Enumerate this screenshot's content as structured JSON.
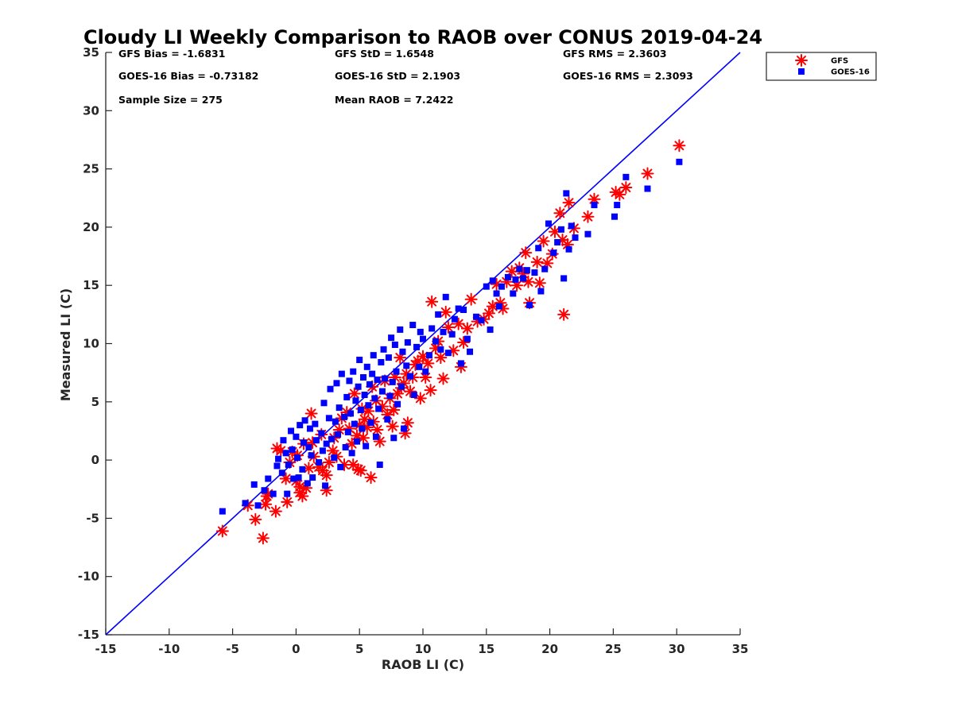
{
  "chart_data": {
    "type": "scatter",
    "title": "Cloudy LI Weekly Comparison to RAOB over CONUS 2019-04-24",
    "xlabel": "RAOB LI (C)",
    "ylabel": "Measured LI (C)",
    "xlim": [
      -15,
      35
    ],
    "ylim": [
      -15,
      35
    ],
    "xticks": [
      "-15",
      "-10",
      "-5",
      "0",
      "5",
      "10",
      "15",
      "20",
      "25",
      "30",
      "35"
    ],
    "yticks": [
      "-15",
      "-10",
      "-5",
      "0",
      "5",
      "10",
      "15",
      "20",
      "25",
      "30",
      "35"
    ],
    "grid": false,
    "legend_position": "top-right (outside)",
    "one_to_one_line": {
      "from": [
        -15,
        -15
      ],
      "to": [
        35,
        35
      ],
      "color": "#0000ff"
    },
    "stats": [
      {
        "text": "GFS Bias = -1.6831"
      },
      {
        "text": "GFS StD = 1.6548"
      },
      {
        "text": "GFS RMS = 2.3603"
      },
      {
        "text": "GOES-16 Bias = -0.73182"
      },
      {
        "text": "GOES-16 StD = 2.1903"
      },
      {
        "text": "GOES-16 RMS = 2.3093"
      },
      {
        "text": "Sample Size = 275"
      },
      {
        "text": "Mean RAOB = 7.2422"
      }
    ],
    "series": [
      {
        "name": "GFS",
        "marker": "asterisk",
        "color": "#ff0000",
        "points": [
          [
            -5.8,
            -6.1
          ],
          [
            -3.8,
            -3.9
          ],
          [
            -3.2,
            -5.1
          ],
          [
            -2.6,
            -6.7
          ],
          [
            -2.3,
            -3.1
          ],
          [
            -2.2,
            -2.9
          ],
          [
            -2.4,
            -3.8
          ],
          [
            -1.6,
            -4.4
          ],
          [
            -1.5,
            1.0
          ],
          [
            -1.2,
            0.8
          ],
          [
            -0.8,
            -1.6
          ],
          [
            -0.7,
            -3.6
          ],
          [
            -0.5,
            -0.2
          ],
          [
            -0.3,
            0.7
          ],
          [
            0.0,
            -1.8
          ],
          [
            0.1,
            0.4
          ],
          [
            0.3,
            -2.8
          ],
          [
            0.3,
            -2.3
          ],
          [
            0.5,
            -3.1
          ],
          [
            0.6,
            1.4
          ],
          [
            0.8,
            -2.4
          ],
          [
            1.0,
            -0.7
          ],
          [
            1.2,
            4.0
          ],
          [
            1.3,
            1.5
          ],
          [
            1.4,
            0.3
          ],
          [
            1.8,
            -0.6
          ],
          [
            2.0,
            2.2
          ],
          [
            2.1,
            -0.9
          ],
          [
            2.4,
            -2.6
          ],
          [
            2.4,
            -1.3
          ],
          [
            2.6,
            -0.2
          ],
          [
            2.9,
            0.8
          ],
          [
            3.0,
            1.9
          ],
          [
            3.2,
            0.3
          ],
          [
            3.4,
            2.6
          ],
          [
            3.6,
            3.6
          ],
          [
            3.8,
            -0.4
          ],
          [
            4.0,
            4.1
          ],
          [
            4.2,
            2.7
          ],
          [
            4.4,
            1.4
          ],
          [
            4.5,
            -0.4
          ],
          [
            4.6,
            5.7
          ],
          [
            4.8,
            2.1
          ],
          [
            4.9,
            -0.8
          ],
          [
            5.0,
            3.0
          ],
          [
            5.2,
            4.4
          ],
          [
            5.1,
            -0.9
          ],
          [
            5.3,
            1.9
          ],
          [
            5.4,
            3.5
          ],
          [
            5.6,
            2.8
          ],
          [
            5.7,
            4.2
          ],
          [
            5.9,
            -1.5
          ],
          [
            6.0,
            6.3
          ],
          [
            6.1,
            3.3
          ],
          [
            6.3,
            5.1
          ],
          [
            6.4,
            2.6
          ],
          [
            6.6,
            1.6
          ],
          [
            6.8,
            4.6
          ],
          [
            7.0,
            6.8
          ],
          [
            7.2,
            3.9
          ],
          [
            7.4,
            5.3
          ],
          [
            7.6,
            2.9
          ],
          [
            7.7,
            4.3
          ],
          [
            7.8,
            7.1
          ],
          [
            8.0,
            5.7
          ],
          [
            8.2,
            8.8
          ],
          [
            8.3,
            6.2
          ],
          [
            8.5,
            6.6
          ],
          [
            8.6,
            2.3
          ],
          [
            8.7,
            7.4
          ],
          [
            8.8,
            3.2
          ],
          [
            9.0,
            5.9
          ],
          [
            9.2,
            7.1
          ],
          [
            9.4,
            8.2
          ],
          [
            9.6,
            8.5
          ],
          [
            9.8,
            5.3
          ],
          [
            10.0,
            8.9
          ],
          [
            10.2,
            7.1
          ],
          [
            10.4,
            8.3
          ],
          [
            10.6,
            6.0
          ],
          [
            10.7,
            13.6
          ],
          [
            11.0,
            9.6
          ],
          [
            11.2,
            10.2
          ],
          [
            11.4,
            8.8
          ],
          [
            11.6,
            7.0
          ],
          [
            11.8,
            12.7
          ],
          [
            12.0,
            11.4
          ],
          [
            12.4,
            9.4
          ],
          [
            12.8,
            11.7
          ],
          [
            13.0,
            8.0
          ],
          [
            13.2,
            10.1
          ],
          [
            13.5,
            11.3
          ],
          [
            13.8,
            13.8
          ],
          [
            14.3,
            11.9
          ],
          [
            14.8,
            12.1
          ],
          [
            15.2,
            12.6
          ],
          [
            15.5,
            13.2
          ],
          [
            15.8,
            15.1
          ],
          [
            16.1,
            13.5
          ],
          [
            16.3,
            13.0
          ],
          [
            16.6,
            15.3
          ],
          [
            17.0,
            16.2
          ],
          [
            17.4,
            15.0
          ],
          [
            17.6,
            16.5
          ],
          [
            17.9,
            16.0
          ],
          [
            18.1,
            17.8
          ],
          [
            18.3,
            15.3
          ],
          [
            18.4,
            13.5
          ],
          [
            19.0,
            17.0
          ],
          [
            19.2,
            15.2
          ],
          [
            19.5,
            18.8
          ],
          [
            19.8,
            16.9
          ],
          [
            20.2,
            17.7
          ],
          [
            20.4,
            19.6
          ],
          [
            20.8,
            21.2
          ],
          [
            21.0,
            18.9
          ],
          [
            21.1,
            12.5
          ],
          [
            21.4,
            18.5
          ],
          [
            21.5,
            22.1
          ],
          [
            21.9,
            19.9
          ],
          [
            23.0,
            20.9
          ],
          [
            23.5,
            22.4
          ],
          [
            25.2,
            23.0
          ],
          [
            25.5,
            22.8
          ],
          [
            26.0,
            23.4
          ],
          [
            27.7,
            24.6
          ],
          [
            30.2,
            27.0
          ]
        ]
      },
      {
        "name": "GOES-16",
        "marker": "square",
        "color": "#0000ff",
        "points": [
          [
            -5.8,
            -4.4
          ],
          [
            -4.0,
            -3.7
          ],
          [
            -3.3,
            -2.1
          ],
          [
            -3.0,
            -3.9
          ],
          [
            -2.5,
            -2.6
          ],
          [
            -2.2,
            -1.6
          ],
          [
            -1.8,
            -2.9
          ],
          [
            -1.5,
            -0.5
          ],
          [
            -1.4,
            0.1
          ],
          [
            -1.1,
            -1.1
          ],
          [
            -1.0,
            1.7
          ],
          [
            -0.8,
            0.6
          ],
          [
            -0.7,
            -2.9
          ],
          [
            -0.6,
            -0.4
          ],
          [
            -0.4,
            2.5
          ],
          [
            -0.3,
            0.9
          ],
          [
            -0.2,
            -1.6
          ],
          [
            0.0,
            2.0
          ],
          [
            0.1,
            0.2
          ],
          [
            0.2,
            -1.5
          ],
          [
            0.3,
            3.0
          ],
          [
            0.5,
            -0.8
          ],
          [
            0.6,
            1.5
          ],
          [
            0.7,
            3.4
          ],
          [
            0.9,
            -2.0
          ],
          [
            1.0,
            1.1
          ],
          [
            1.1,
            2.7
          ],
          [
            1.2,
            0.4
          ],
          [
            1.3,
            -1.5
          ],
          [
            1.5,
            3.1
          ],
          [
            1.6,
            1.7
          ],
          [
            1.8,
            -0.2
          ],
          [
            2.0,
            2.3
          ],
          [
            2.1,
            0.8
          ],
          [
            2.2,
            4.9
          ],
          [
            2.3,
            -2.2
          ],
          [
            2.4,
            1.4
          ],
          [
            2.6,
            3.6
          ],
          [
            2.7,
            6.1
          ],
          [
            2.8,
            1.8
          ],
          [
            3.0,
            0.2
          ],
          [
            3.1,
            3.3
          ],
          [
            3.2,
            6.6
          ],
          [
            3.3,
            2.2
          ],
          [
            3.4,
            4.5
          ],
          [
            3.5,
            -0.6
          ],
          [
            3.6,
            7.4
          ],
          [
            3.8,
            3.7
          ],
          [
            3.9,
            1.1
          ],
          [
            4.0,
            5.4
          ],
          [
            4.1,
            2.4
          ],
          [
            4.2,
            6.8
          ],
          [
            4.3,
            4.0
          ],
          [
            4.4,
            0.6
          ],
          [
            4.5,
            7.6
          ],
          [
            4.6,
            3.1
          ],
          [
            4.7,
            5.1
          ],
          [
            4.8,
            1.6
          ],
          [
            4.9,
            6.3
          ],
          [
            5.0,
            8.6
          ],
          [
            5.1,
            4.3
          ],
          [
            5.2,
            2.7
          ],
          [
            5.3,
            7.1
          ],
          [
            5.4,
            5.6
          ],
          [
            5.5,
            1.2
          ],
          [
            5.6,
            8.0
          ],
          [
            5.7,
            4.7
          ],
          [
            5.8,
            6.5
          ],
          [
            5.9,
            3.2
          ],
          [
            6.0,
            7.4
          ],
          [
            6.1,
            9.0
          ],
          [
            6.2,
            5.3
          ],
          [
            6.3,
            2.0
          ],
          [
            6.4,
            6.9
          ],
          [
            6.5,
            4.4
          ],
          [
            6.6,
            -0.4
          ],
          [
            6.7,
            8.4
          ],
          [
            6.8,
            5.9
          ],
          [
            6.9,
            9.5
          ],
          [
            7.0,
            7.0
          ],
          [
            7.2,
            3.5
          ],
          [
            7.3,
            8.8
          ],
          [
            7.4,
            5.5
          ],
          [
            7.5,
            10.5
          ],
          [
            7.6,
            6.7
          ],
          [
            7.7,
            1.9
          ],
          [
            7.8,
            9.9
          ],
          [
            7.9,
            7.6
          ],
          [
            8.0,
            4.8
          ],
          [
            8.2,
            11.2
          ],
          [
            8.3,
            6.3
          ],
          [
            8.4,
            9.3
          ],
          [
            8.5,
            2.7
          ],
          [
            8.7,
            8.1
          ],
          [
            8.8,
            10.1
          ],
          [
            9.0,
            7.2
          ],
          [
            9.2,
            11.6
          ],
          [
            9.3,
            5.6
          ],
          [
            9.5,
            9.7
          ],
          [
            9.7,
            8.0
          ],
          [
            9.8,
            11.0
          ],
          [
            10.0,
            10.4
          ],
          [
            10.2,
            7.6
          ],
          [
            10.5,
            9.0
          ],
          [
            10.7,
            11.3
          ],
          [
            11.0,
            10.2
          ],
          [
            11.2,
            12.5
          ],
          [
            11.4,
            9.5
          ],
          [
            11.6,
            11.0
          ],
          [
            11.8,
            14.0
          ],
          [
            12.0,
            9.2
          ],
          [
            12.3,
            10.8
          ],
          [
            12.5,
            12.1
          ],
          [
            12.8,
            13.0
          ],
          [
            13.0,
            8.3
          ],
          [
            13.2,
            12.9
          ],
          [
            13.5,
            10.4
          ],
          [
            13.7,
            9.3
          ],
          [
            14.2,
            12.3
          ],
          [
            14.6,
            12.0
          ],
          [
            15.0,
            14.9
          ],
          [
            15.3,
            11.2
          ],
          [
            15.5,
            15.4
          ],
          [
            15.8,
            14.3
          ],
          [
            16.0,
            13.2
          ],
          [
            16.2,
            14.9
          ],
          [
            16.7,
            15.7
          ],
          [
            17.1,
            14.3
          ],
          [
            17.3,
            15.5
          ],
          [
            17.6,
            16.4
          ],
          [
            17.9,
            15.6
          ],
          [
            18.2,
            16.3
          ],
          [
            18.4,
            13.3
          ],
          [
            18.8,
            16.1
          ],
          [
            19.1,
            18.2
          ],
          [
            19.3,
            14.5
          ],
          [
            19.6,
            16.4
          ],
          [
            19.9,
            20.3
          ],
          [
            20.3,
            17.8
          ],
          [
            20.6,
            18.7
          ],
          [
            20.9,
            19.8
          ],
          [
            21.1,
            15.6
          ],
          [
            21.3,
            22.9
          ],
          [
            21.5,
            18.1
          ],
          [
            21.7,
            20.1
          ],
          [
            22.0,
            19.1
          ],
          [
            23.0,
            19.4
          ],
          [
            23.5,
            21.9
          ],
          [
            25.1,
            20.9
          ],
          [
            25.3,
            21.9
          ],
          [
            26.0,
            24.3
          ],
          [
            27.7,
            23.3
          ],
          [
            30.2,
            25.6
          ]
        ]
      }
    ]
  }
}
